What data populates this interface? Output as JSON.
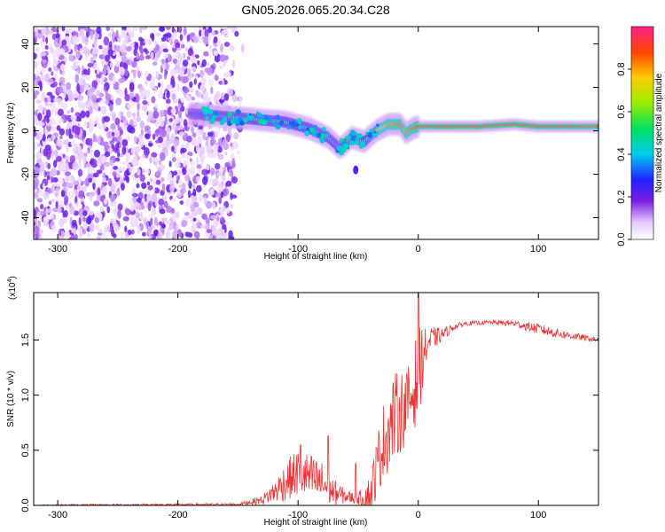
{
  "title": "GN05.2026.065.20.34.C28",
  "chart_data": [
    {
      "type": "heatmap",
      "name": "spectrogram",
      "xlabel": "Height of straight line (km)",
      "ylabel": "Frequency (Hz)",
      "xlim": [
        -320,
        150
      ],
      "ylim": [
        -50,
        48
      ],
      "xticks": [
        -300,
        -200,
        -100,
        0,
        100
      ],
      "yticks": [
        -40,
        -20,
        0,
        20,
        40
      ],
      "colorbar": {
        "label": "Normalized spectral amplitude",
        "range": [
          0,
          1
        ],
        "ticks": [
          0.0,
          0.2,
          0.4,
          0.6,
          0.8
        ],
        "tick_labels": [
          "0.0",
          "0.2",
          "0.4",
          "0.6",
          "0.8"
        ]
      },
      "ridge": {
        "x": [
          -190,
          -170,
          -150,
          -130,
          -110,
          -90,
          -75,
          -65,
          -55,
          -45,
          -35,
          -25,
          -15,
          -10,
          -5,
          0,
          20,
          50,
          80,
          100,
          120,
          150
        ],
        "freq": [
          8,
          7,
          6,
          5,
          4,
          1,
          -3,
          -8,
          -3,
          -5,
          0,
          3,
          3,
          -1,
          1,
          2,
          2,
          2,
          3,
          2,
          2,
          2
        ],
        "amplitude": [
          0.3,
          0.35,
          0.4,
          0.45,
          0.45,
          0.45,
          0.4,
          0.35,
          0.4,
          0.5,
          0.65,
          0.8,
          0.85,
          0.8,
          0.85,
          0.9,
          0.95,
          0.95,
          0.95,
          0.9,
          0.9,
          0.85
        ]
      }
    },
    {
      "type": "line",
      "name": "snr",
      "xlabel": "Height of straight line (km)",
      "ylabel": "SNR (10 * v/v)",
      "y_multiplier": "(x10",
      "y_multiplier_exp": "4",
      "y_multiplier_close": ")",
      "xlim": [
        -320,
        150
      ],
      "ylim": [
        0,
        1.93
      ],
      "xticks": [
        -300,
        -200,
        -100,
        0,
        100
      ],
      "yticks": [
        0.0,
        0.5,
        1.0,
        1.5
      ],
      "ytick_labels": [
        "0.0",
        "0.5",
        "1.0",
        "1.5"
      ],
      "color": "#ee3333",
      "envelope": {
        "x": [
          -320,
          -150,
          -130,
          -120,
          -110,
          -100,
          -90,
          -80,
          -70,
          -60,
          -50,
          -40,
          -30,
          -20,
          -10,
          -5,
          0,
          5,
          10,
          20,
          30,
          40,
          60,
          80,
          100,
          120,
          150
        ],
        "base": [
          0.0,
          0.01,
          0.05,
          0.12,
          0.22,
          0.3,
          0.25,
          0.2,
          0.12,
          0.08,
          0.06,
          0.1,
          0.55,
          0.8,
          0.9,
          1.0,
          1.2,
          1.4,
          1.5,
          1.55,
          1.62,
          1.65,
          1.66,
          1.65,
          1.6,
          1.55,
          1.5
        ],
        "noise": [
          0.01,
          0.01,
          0.04,
          0.1,
          0.18,
          0.22,
          0.22,
          0.2,
          0.12,
          0.06,
          0.05,
          0.18,
          0.35,
          0.4,
          0.35,
          0.3,
          0.5,
          0.2,
          0.12,
          0.06,
          0.03,
          0.02,
          0.02,
          0.03,
          0.05,
          0.04,
          0.02
        ]
      },
      "peaks": [
        {
          "x": 0,
          "y": 1.93
        },
        {
          "x": -52,
          "y": 0.38
        },
        {
          "x": -98,
          "y": 0.55
        },
        {
          "x": -75,
          "y": 0.63
        }
      ]
    }
  ]
}
